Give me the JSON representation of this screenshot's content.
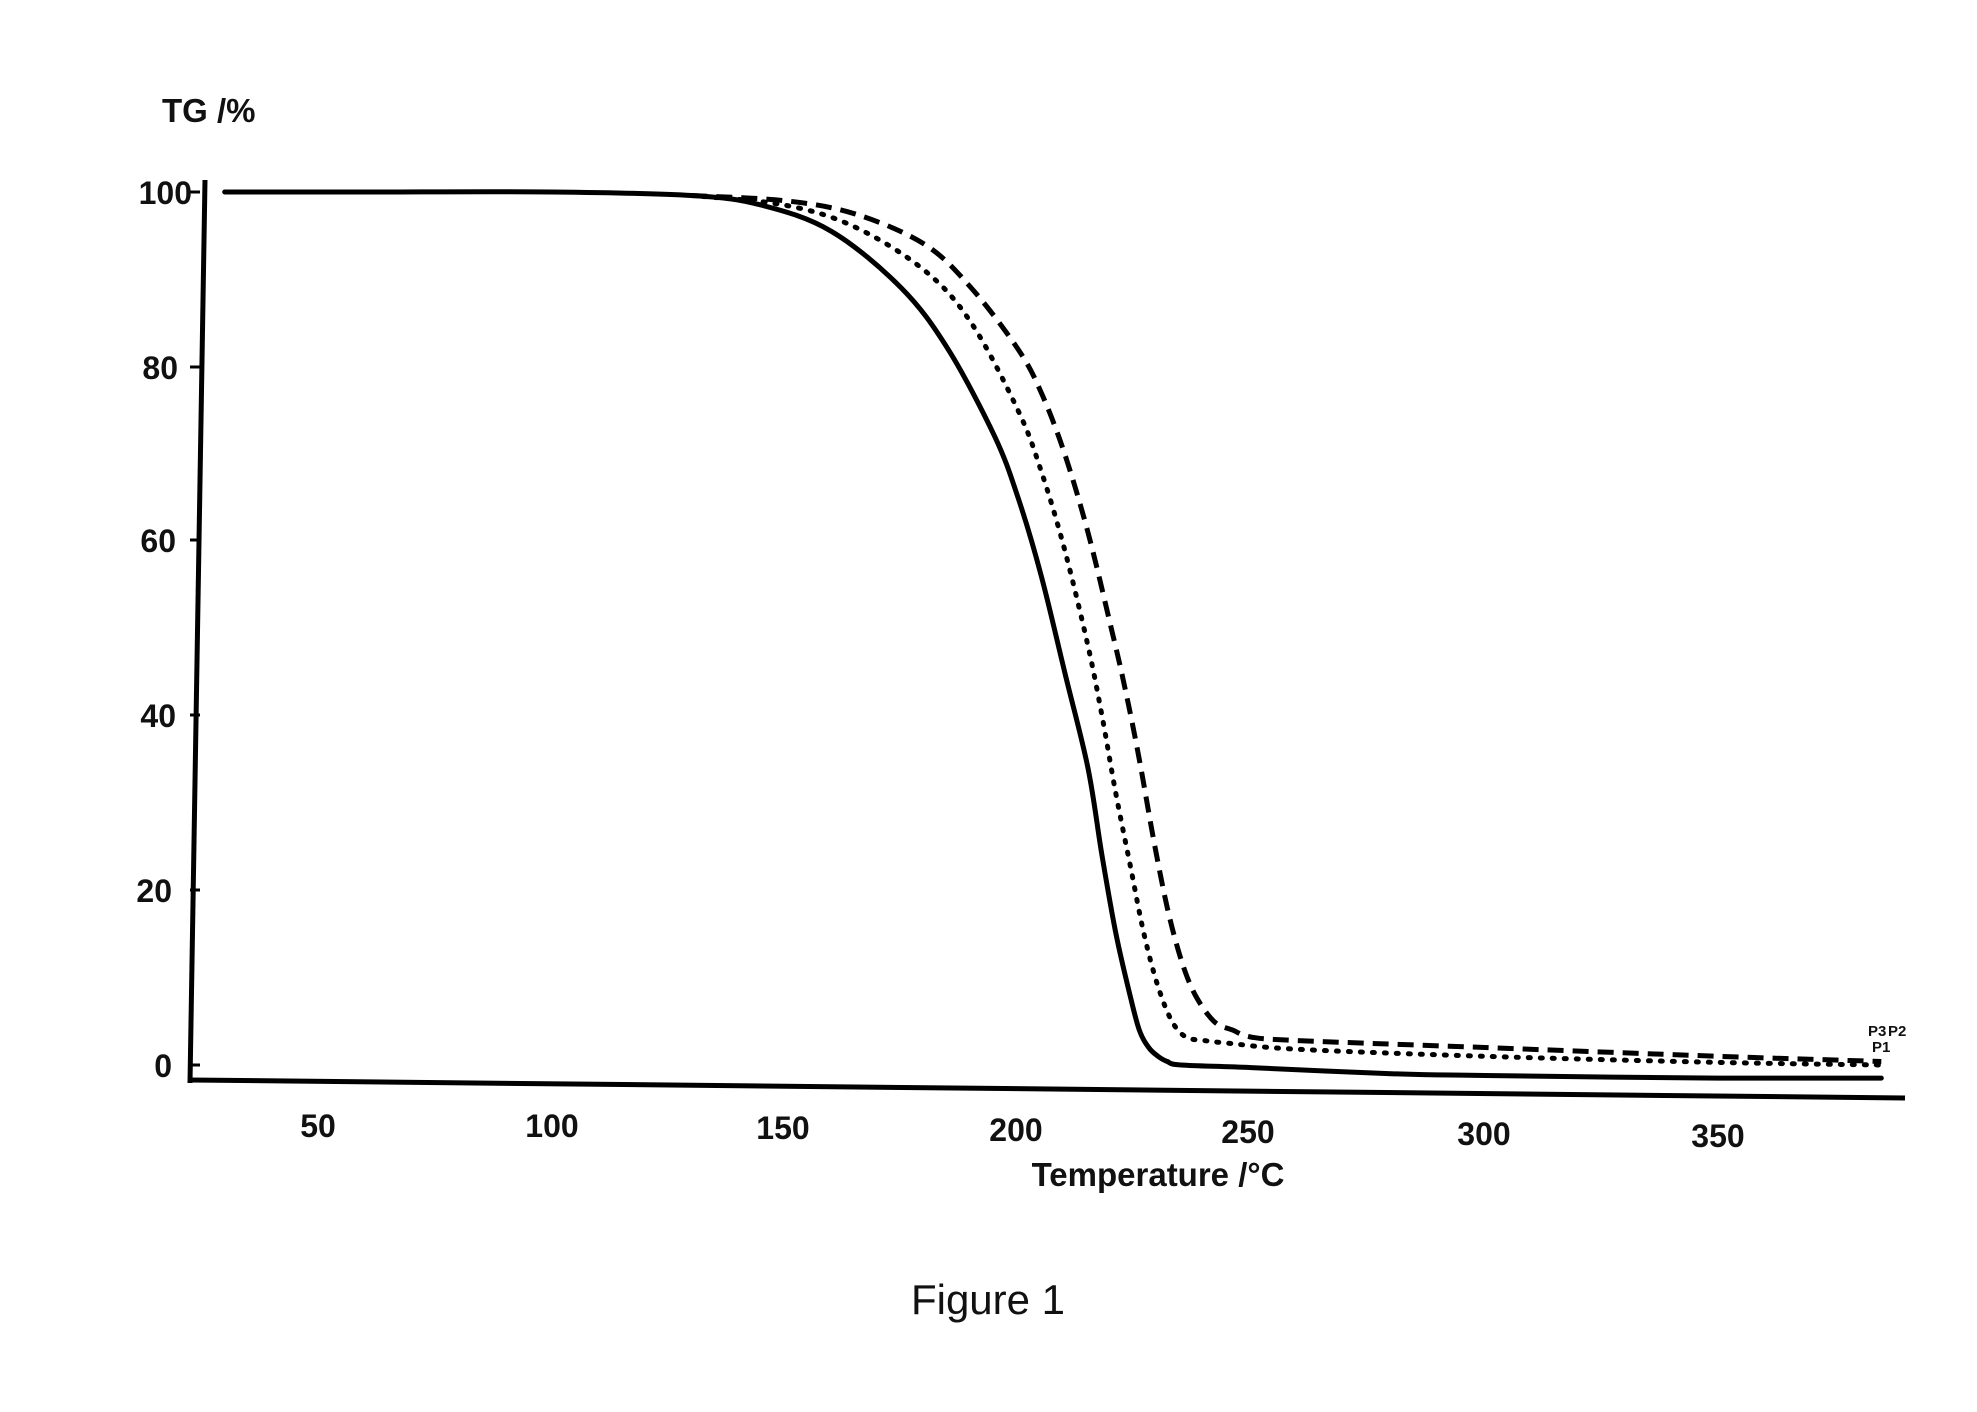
{
  "chart_data": {
    "type": "line",
    "title": "",
    "xlabel": "Temperature /°C",
    "ylabel": "TG /%",
    "caption": "Figure 1",
    "xlim": [
      25,
      390
    ],
    "ylim": [
      0,
      100
    ],
    "grid": false,
    "x_ticks": [
      "50",
      "100",
      "150",
      "200",
      "250",
      "300",
      "350"
    ],
    "y_ticks": [
      "0",
      "20",
      "40",
      "60",
      "80",
      "100"
    ],
    "series": [
      {
        "style": "solid",
        "x": [
          30,
          60,
          100,
          130,
          145,
          160,
          175,
          185,
          195,
          200,
          205,
          210,
          215,
          218,
          221,
          224,
          226,
          228,
          230,
          232,
          235,
          250,
          280,
          300,
          350,
          385
        ],
        "y": [
          100,
          100,
          100,
          99.6,
          98.5,
          95.5,
          89,
          82,
          72,
          65,
          56,
          45,
          34,
          24,
          15,
          8,
          4,
          2,
          1,
          0.4,
          0,
          -0.3,
          -1,
          -1.2,
          -1.5,
          -1.5
        ]
      },
      {
        "style": "dotted",
        "x": [
          130,
          150,
          165,
          180,
          190,
          200,
          205,
          210,
          215,
          218,
          221,
          224,
          227,
          230,
          233,
          236,
          240,
          245,
          260,
          300,
          350,
          385
        ],
        "y": [
          99.6,
          98.5,
          96,
          91,
          85,
          75,
          68,
          59,
          48,
          40,
          31,
          23,
          15,
          9,
          5,
          3.2,
          2.8,
          2.5,
          1.8,
          1,
          0.3,
          0
        ]
      },
      {
        "style": "dashed",
        "x": [
          130,
          150,
          165,
          180,
          190,
          200,
          205,
          210,
          215,
          220,
          223,
          226,
          229,
          232,
          235,
          238,
          242,
          246,
          250,
          260,
          300,
          350,
          385
        ],
        "y": [
          99.6,
          99,
          97.5,
          94,
          89,
          82,
          77,
          70,
          61,
          50,
          43,
          35,
          26,
          18,
          12,
          8,
          5,
          4,
          3.2,
          2.8,
          2,
          1,
          0.4
        ]
      }
    ],
    "end_labels": [
      "P3",
      "P2",
      "P1"
    ]
  }
}
